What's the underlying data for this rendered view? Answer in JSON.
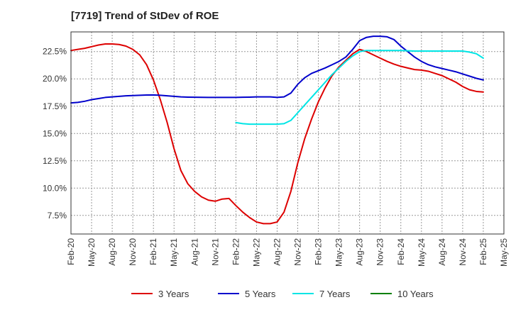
{
  "chart_data": {
    "type": "line",
    "title": "[7719]  Trend of StDev of ROE",
    "xlabel": "",
    "ylabel": "",
    "x_range": [
      "2020-02",
      "2025-05"
    ],
    "ylim": [
      5.8,
      24.3
    ],
    "y_ticks": [
      7.5,
      10.0,
      12.5,
      15.0,
      17.5,
      20.0,
      22.5
    ],
    "y_tick_labels": [
      "7.5%",
      "10.0%",
      "12.5%",
      "15.0%",
      "17.5%",
      "20.0%",
      "22.5%"
    ],
    "x_ticks": [
      "2020-02",
      "2020-05",
      "2020-08",
      "2020-11",
      "2021-02",
      "2021-05",
      "2021-08",
      "2021-11",
      "2022-02",
      "2022-05",
      "2022-08",
      "2022-11",
      "2023-02",
      "2023-05",
      "2023-08",
      "2023-11",
      "2024-02",
      "2024-05",
      "2024-08",
      "2024-11",
      "2025-02",
      "2025-05"
    ],
    "x_tick_labels": [
      "Feb-20",
      "May-20",
      "Aug-20",
      "Nov-20",
      "Feb-21",
      "May-21",
      "Aug-21",
      "Nov-21",
      "Feb-22",
      "May-22",
      "Aug-22",
      "Nov-22",
      "Feb-23",
      "May-23",
      "Aug-23",
      "Nov-23",
      "Feb-24",
      "May-24",
      "Aug-24",
      "Nov-24",
      "Feb-25",
      "May-25"
    ],
    "grid": true,
    "legend_position": "bottom",
    "series": [
      {
        "name": "3 Years",
        "color": "#dd0000",
        "points": [
          [
            "2020-02",
            22.6
          ],
          [
            "2020-03",
            22.7
          ],
          [
            "2020-04",
            22.8
          ],
          [
            "2020-05",
            22.95
          ],
          [
            "2020-06",
            23.1
          ],
          [
            "2020-07",
            23.2
          ],
          [
            "2020-08",
            23.2
          ],
          [
            "2020-09",
            23.15
          ],
          [
            "2020-10",
            23.0
          ],
          [
            "2020-11",
            22.7
          ],
          [
            "2020-12",
            22.2
          ],
          [
            "2021-01",
            21.3
          ],
          [
            "2021-02",
            19.9
          ],
          [
            "2021-03",
            18.1
          ],
          [
            "2021-04",
            16.0
          ],
          [
            "2021-05",
            13.6
          ],
          [
            "2021-06",
            11.6
          ],
          [
            "2021-07",
            10.4
          ],
          [
            "2021-08",
            9.7
          ],
          [
            "2021-09",
            9.2
          ],
          [
            "2021-10",
            8.9
          ],
          [
            "2021-11",
            8.8
          ],
          [
            "2021-12",
            9.0
          ],
          [
            "2022-01",
            9.05
          ],
          [
            "2022-02",
            8.4
          ],
          [
            "2022-03",
            7.8
          ],
          [
            "2022-04",
            7.3
          ],
          [
            "2022-05",
            6.9
          ],
          [
            "2022-06",
            6.75
          ],
          [
            "2022-07",
            6.75
          ],
          [
            "2022-08",
            6.9
          ],
          [
            "2022-09",
            7.8
          ],
          [
            "2022-10",
            9.7
          ],
          [
            "2022-11",
            12.3
          ],
          [
            "2022-12",
            14.5
          ],
          [
            "2023-01",
            16.3
          ],
          [
            "2023-02",
            17.9
          ],
          [
            "2023-03",
            19.2
          ],
          [
            "2023-04",
            20.3
          ],
          [
            "2023-05",
            21.1
          ],
          [
            "2023-06",
            21.7
          ],
          [
            "2023-07",
            22.3
          ],
          [
            "2023-08",
            22.7
          ],
          [
            "2023-09",
            22.5
          ],
          [
            "2023-10",
            22.2
          ],
          [
            "2023-11",
            21.9
          ],
          [
            "2023-12",
            21.6
          ],
          [
            "2024-01",
            21.35
          ],
          [
            "2024-02",
            21.15
          ],
          [
            "2024-03",
            21.0
          ],
          [
            "2024-04",
            20.85
          ],
          [
            "2024-05",
            20.8
          ],
          [
            "2024-06",
            20.7
          ],
          [
            "2024-07",
            20.5
          ],
          [
            "2024-08",
            20.3
          ],
          [
            "2024-09",
            20.0
          ],
          [
            "2024-10",
            19.7
          ],
          [
            "2024-11",
            19.3
          ],
          [
            "2024-12",
            19.0
          ],
          [
            "2025-01",
            18.85
          ],
          [
            "2025-02",
            18.8
          ]
        ]
      },
      {
        "name": "5 Years",
        "color": "#0000cc",
        "points": [
          [
            "2020-02",
            17.8
          ],
          [
            "2020-03",
            17.85
          ],
          [
            "2020-04",
            17.95
          ],
          [
            "2020-05",
            18.1
          ],
          [
            "2020-06",
            18.2
          ],
          [
            "2020-07",
            18.3
          ],
          [
            "2020-08",
            18.35
          ],
          [
            "2020-09",
            18.4
          ],
          [
            "2020-10",
            18.45
          ],
          [
            "2020-11",
            18.47
          ],
          [
            "2020-12",
            18.5
          ],
          [
            "2021-01",
            18.52
          ],
          [
            "2021-02",
            18.53
          ],
          [
            "2021-03",
            18.5
          ],
          [
            "2021-04",
            18.45
          ],
          [
            "2021-05",
            18.4
          ],
          [
            "2021-06",
            18.35
          ],
          [
            "2021-07",
            18.33
          ],
          [
            "2021-08",
            18.32
          ],
          [
            "2021-09",
            18.31
          ],
          [
            "2021-10",
            18.3
          ],
          [
            "2021-11",
            18.3
          ],
          [
            "2021-12",
            18.3
          ],
          [
            "2022-01",
            18.3
          ],
          [
            "2022-02",
            18.3
          ],
          [
            "2022-03",
            18.32
          ],
          [
            "2022-04",
            18.33
          ],
          [
            "2022-05",
            18.35
          ],
          [
            "2022-06",
            18.35
          ],
          [
            "2022-07",
            18.35
          ],
          [
            "2022-08",
            18.3
          ],
          [
            "2022-09",
            18.35
          ],
          [
            "2022-10",
            18.7
          ],
          [
            "2022-11",
            19.5
          ],
          [
            "2022-12",
            20.1
          ],
          [
            "2023-01",
            20.5
          ],
          [
            "2023-02",
            20.75
          ],
          [
            "2023-03",
            21.0
          ],
          [
            "2023-04",
            21.3
          ],
          [
            "2023-05",
            21.6
          ],
          [
            "2023-06",
            22.0
          ],
          [
            "2023-07",
            22.7
          ],
          [
            "2023-08",
            23.5
          ],
          [
            "2023-09",
            23.8
          ],
          [
            "2023-10",
            23.9
          ],
          [
            "2023-11",
            23.9
          ],
          [
            "2023-12",
            23.85
          ],
          [
            "2024-01",
            23.6
          ],
          [
            "2024-02",
            23.0
          ],
          [
            "2024-03",
            22.5
          ],
          [
            "2024-04",
            22.0
          ],
          [
            "2024-05",
            21.6
          ],
          [
            "2024-06",
            21.3
          ],
          [
            "2024-07",
            21.1
          ],
          [
            "2024-08",
            20.95
          ],
          [
            "2024-09",
            20.8
          ],
          [
            "2024-10",
            20.65
          ],
          [
            "2024-11",
            20.45
          ],
          [
            "2024-12",
            20.25
          ],
          [
            "2025-01",
            20.05
          ],
          [
            "2025-02",
            19.9
          ]
        ]
      },
      {
        "name": "7 Years",
        "color": "#00e5e5",
        "points": [
          [
            "2022-02",
            16.0
          ],
          [
            "2022-03",
            15.9
          ],
          [
            "2022-04",
            15.85
          ],
          [
            "2022-05",
            15.85
          ],
          [
            "2022-06",
            15.85
          ],
          [
            "2022-07",
            15.85
          ],
          [
            "2022-08",
            15.85
          ],
          [
            "2022-09",
            15.9
          ],
          [
            "2022-10",
            16.2
          ],
          [
            "2022-11",
            16.9
          ],
          [
            "2022-12",
            17.6
          ],
          [
            "2023-01",
            18.3
          ],
          [
            "2023-02",
            19.0
          ],
          [
            "2023-03",
            19.7
          ],
          [
            "2023-04",
            20.4
          ],
          [
            "2023-05",
            21.0
          ],
          [
            "2023-06",
            21.6
          ],
          [
            "2023-07",
            22.1
          ],
          [
            "2023-08",
            22.5
          ],
          [
            "2023-09",
            22.6
          ],
          [
            "2023-10",
            22.6
          ],
          [
            "2023-11",
            22.6
          ],
          [
            "2023-12",
            22.6
          ],
          [
            "2024-01",
            22.6
          ],
          [
            "2024-02",
            22.6
          ],
          [
            "2024-03",
            22.57
          ],
          [
            "2024-04",
            22.55
          ],
          [
            "2024-05",
            22.55
          ],
          [
            "2024-06",
            22.55
          ],
          [
            "2024-07",
            22.55
          ],
          [
            "2024-08",
            22.55
          ],
          [
            "2024-09",
            22.55
          ],
          [
            "2024-10",
            22.55
          ],
          [
            "2024-11",
            22.55
          ],
          [
            "2024-12",
            22.45
          ],
          [
            "2025-01",
            22.3
          ],
          [
            "2025-02",
            21.9
          ]
        ]
      },
      {
        "name": "10 Years",
        "color": "#008000",
        "points": []
      }
    ]
  }
}
